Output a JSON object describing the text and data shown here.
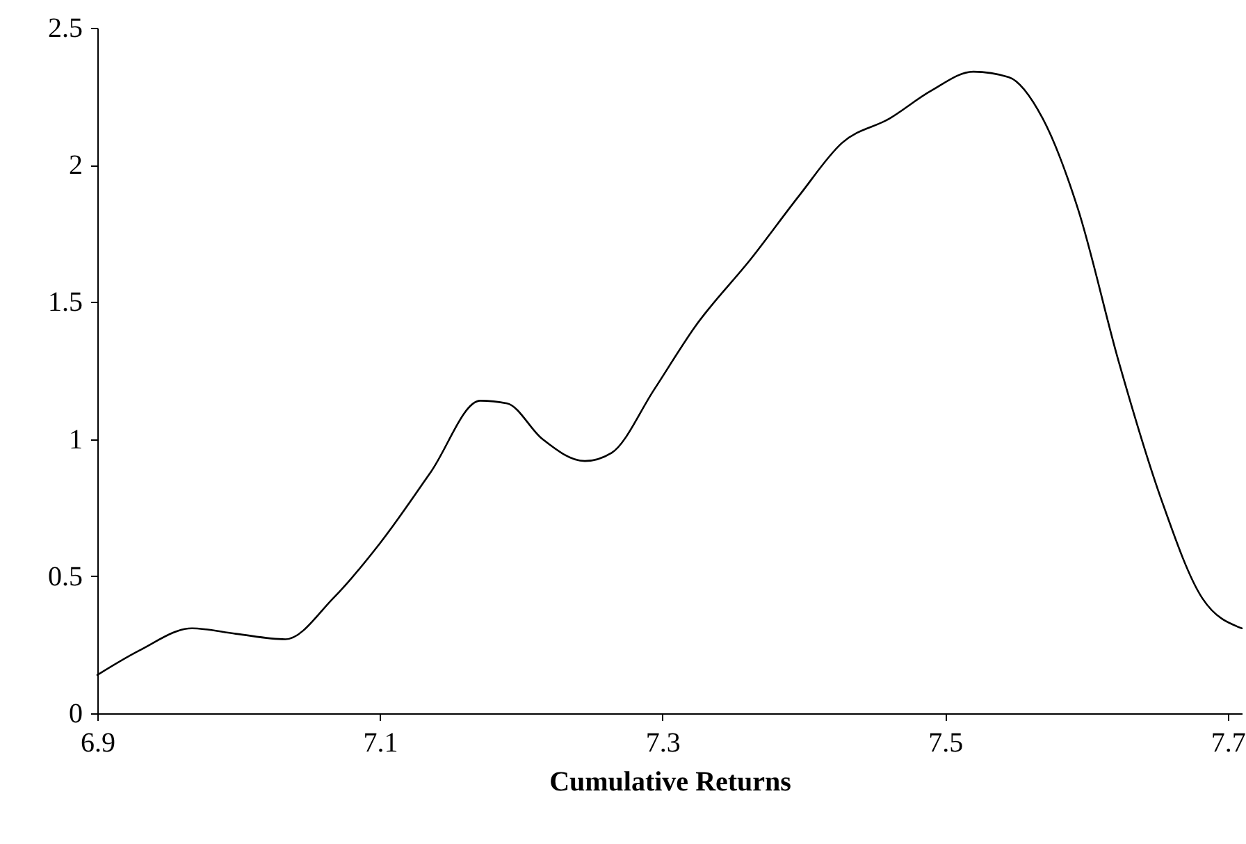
{
  "chart_data": {
    "type": "line",
    "xlabel": "Cumulative Returns",
    "x": [
      6.9,
      6.93,
      6.967,
      6.998,
      7.033,
      7.067,
      7.1,
      7.136,
      7.171,
      7.19,
      7.215,
      7.245,
      7.264,
      7.294,
      7.323,
      7.363,
      7.397,
      7.427,
      7.461,
      7.49,
      7.52,
      7.545,
      7.569,
      7.594,
      7.623,
      7.653,
      7.682,
      7.71
    ],
    "series": [
      {
        "color": "#000000",
        "values": [
          0.14,
          0.23,
          0.31,
          0.29,
          0.27,
          0.42,
          0.62,
          0.88,
          1.14,
          1.13,
          1.0,
          0.92,
          0.95,
          1.18,
          1.41,
          1.66,
          1.89,
          2.08,
          2.17,
          2.27,
          2.34,
          2.32,
          2.17,
          1.84,
          1.28,
          0.78,
          0.42,
          0.31
        ]
      }
    ],
    "xlim": [
      6.9,
      7.71
    ],
    "xticks": [
      6.9,
      7.1,
      7.3,
      7.5,
      7.7
    ],
    "ylim": [
      0,
      2.5
    ],
    "yticks": [
      0,
      0.5,
      1,
      1.5,
      2,
      2.5
    ],
    "grid": false,
    "marker": "none",
    "line_style": "solid"
  }
}
